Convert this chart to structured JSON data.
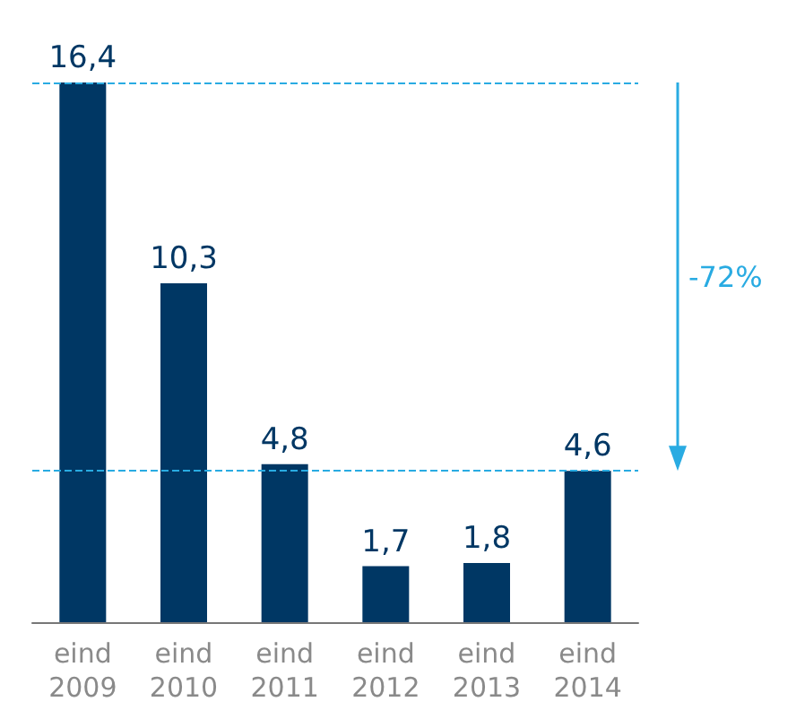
{
  "chart_data": {
    "type": "bar",
    "categories": [
      "eind\n2009",
      "eind\n2010",
      "eind\n2011",
      "eind\n2012",
      "eind\n2013",
      "eind\n2014"
    ],
    "values": [
      16.4,
      10.3,
      4.8,
      1.7,
      1.8,
      4.6
    ],
    "value_labels": [
      "16,4",
      "10,3",
      "4,8",
      "1,7",
      "1,8",
      "4,6"
    ],
    "color": "#003764",
    "ref_lines": [
      {
        "axis": "y",
        "value": 16.4,
        "label": null,
        "color": "#29abe2",
        "line_style": "dashed"
      },
      {
        "axis": "y",
        "value": 4.6,
        "label": null,
        "color": "#29abe2",
        "line_style": "dashed"
      }
    ],
    "annotations": [
      "-72%"
    ]
  }
}
